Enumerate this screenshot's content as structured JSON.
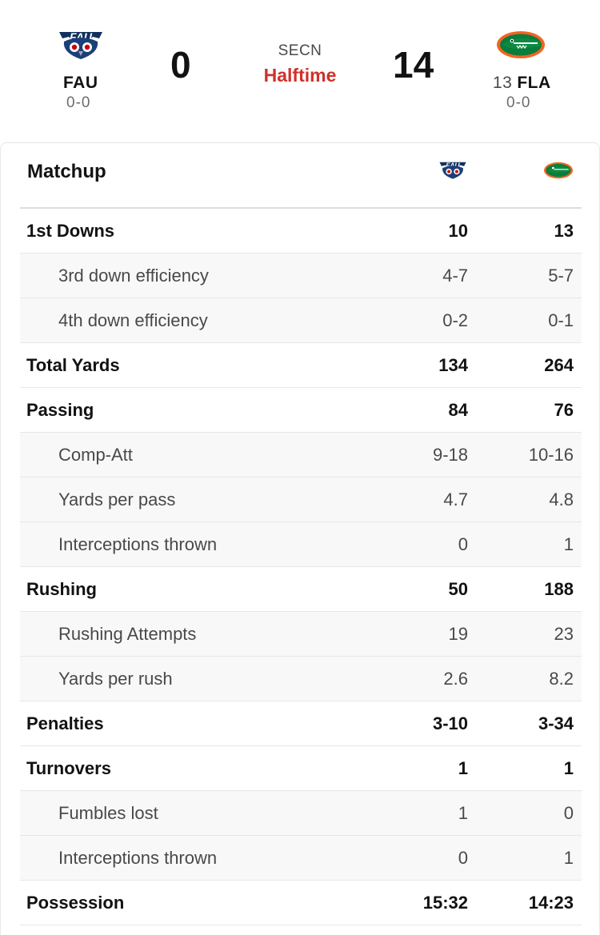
{
  "game": {
    "network": "SECN",
    "status": "Halftime",
    "away": {
      "abbr": "FAU",
      "record": "0-0",
      "score": "0",
      "rank": "",
      "logo_icon": "fau-owl-logo"
    },
    "home": {
      "abbr": "FLA",
      "record": "0-0",
      "score": "14",
      "rank": "13",
      "logo_icon": "florida-gator-logo"
    }
  },
  "matchup": {
    "title": "Matchup",
    "rows": [
      {
        "label": "1st Downs",
        "away": "10",
        "home": "13",
        "type": "main"
      },
      {
        "label": "3rd down efficiency",
        "away": "4-7",
        "home": "5-7",
        "type": "sub"
      },
      {
        "label": "4th down efficiency",
        "away": "0-2",
        "home": "0-1",
        "type": "sub"
      },
      {
        "label": "Total Yards",
        "away": "134",
        "home": "264",
        "type": "main"
      },
      {
        "label": "Passing",
        "away": "84",
        "home": "76",
        "type": "main"
      },
      {
        "label": "Comp-Att",
        "away": "9-18",
        "home": "10-16",
        "type": "sub"
      },
      {
        "label": "Yards per pass",
        "away": "4.7",
        "home": "4.8",
        "type": "sub"
      },
      {
        "label": "Interceptions thrown",
        "away": "0",
        "home": "1",
        "type": "sub"
      },
      {
        "label": "Rushing",
        "away": "50",
        "home": "188",
        "type": "main"
      },
      {
        "label": "Rushing Attempts",
        "away": "19",
        "home": "23",
        "type": "sub"
      },
      {
        "label": "Yards per rush",
        "away": "2.6",
        "home": "8.2",
        "type": "sub"
      },
      {
        "label": "Penalties",
        "away": "3-10",
        "home": "3-34",
        "type": "main"
      },
      {
        "label": "Turnovers",
        "away": "1",
        "home": "1",
        "type": "main"
      },
      {
        "label": "Fumbles lost",
        "away": "1",
        "home": "0",
        "type": "sub"
      },
      {
        "label": "Interceptions thrown",
        "away": "0",
        "home": "1",
        "type": "sub"
      },
      {
        "label": "Possession",
        "away": "15:32",
        "home": "14:23",
        "type": "main"
      }
    ]
  },
  "colors": {
    "status_red": "#d0302b",
    "fau_navy": "#003366",
    "fau_red": "#cc0000",
    "gator_green": "#0a7d3c",
    "gator_orange": "#f26522"
  }
}
